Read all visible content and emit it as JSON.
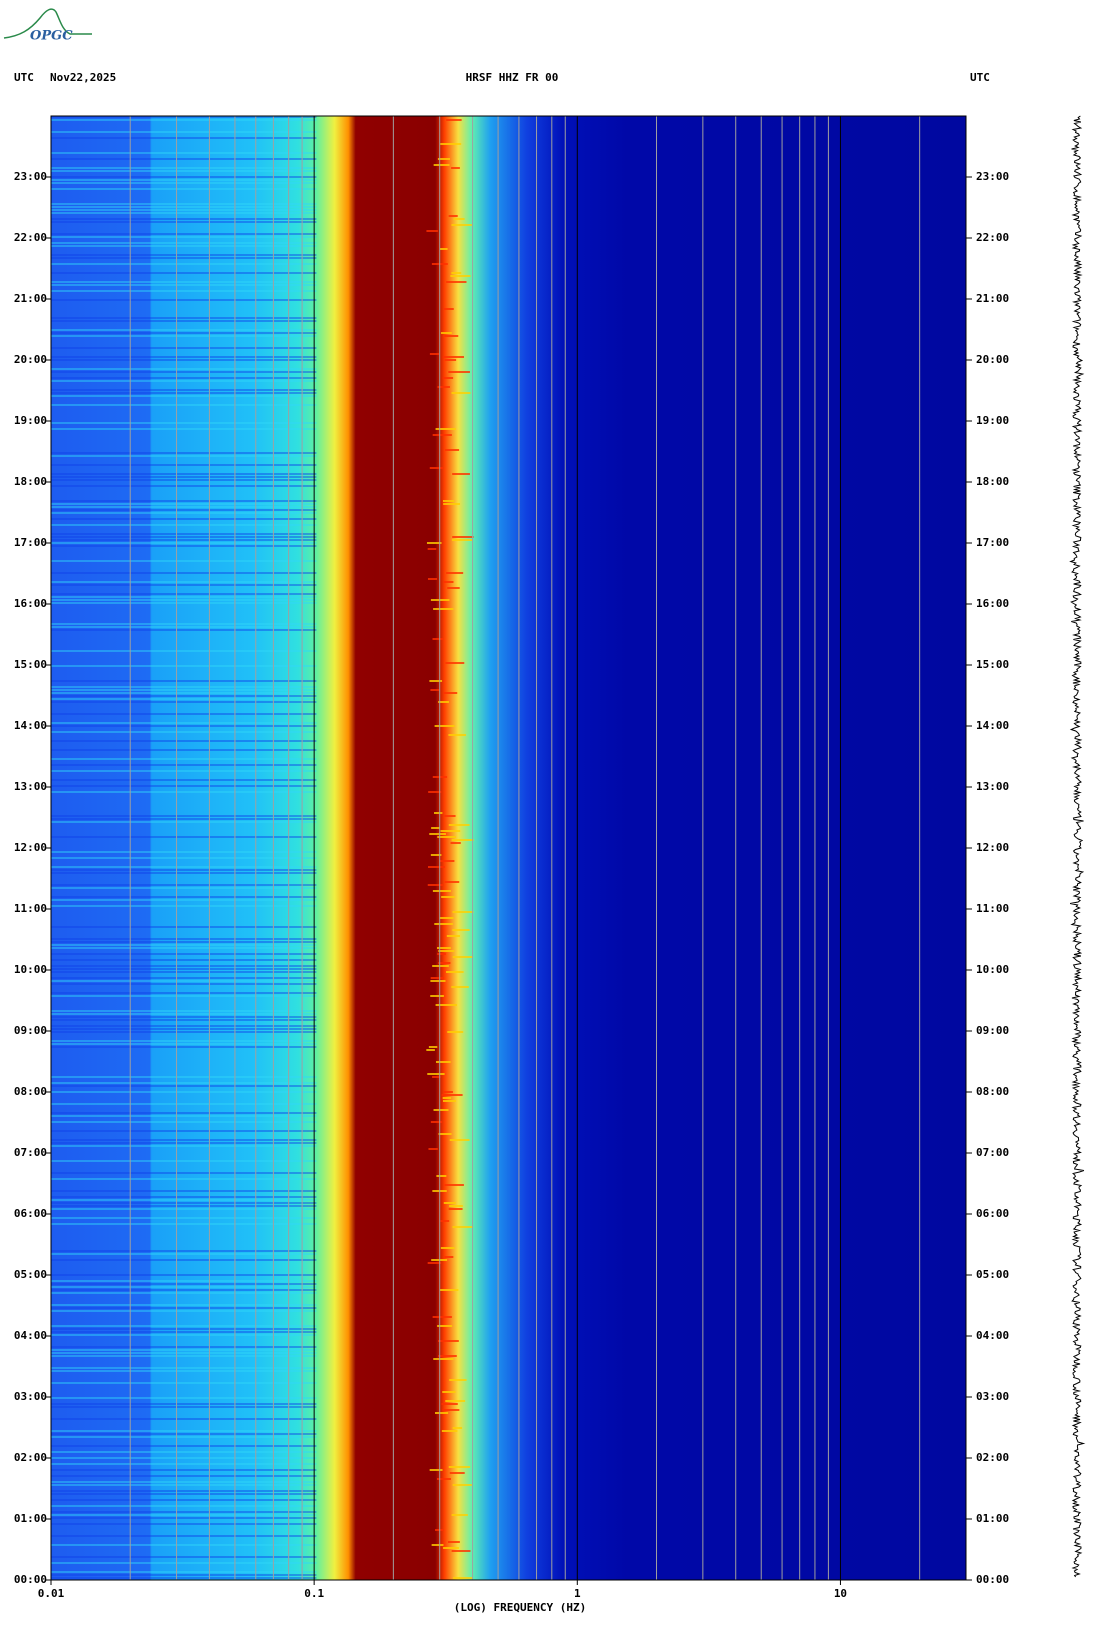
{
  "chart_data": {
    "type": "spectrogram",
    "logo": "OPGC",
    "time_zone_left": "UTC",
    "date": "Nov22,2025",
    "title": "HRSF HHZ FR 00",
    "time_zone_right": "UTC",
    "xlabel": "(LOG) FREQUENCY (HZ)",
    "xscale": "log",
    "xlim": [
      0.01,
      30
    ],
    "xticks": [
      0.01,
      0.1,
      1,
      10
    ],
    "xgrid": [
      0.02,
      0.03,
      0.04,
      0.05,
      0.06,
      0.07,
      0.08,
      0.09,
      0.2,
      0.3,
      0.4,
      0.5,
      0.6,
      0.7,
      0.8,
      0.9,
      2,
      3,
      4,
      5,
      6,
      7,
      8,
      9,
      20
    ],
    "ylim": [
      0,
      24
    ],
    "yticks": [
      {
        "value": 0,
        "label": "00:00"
      },
      {
        "value": 1,
        "label": "01:00"
      },
      {
        "value": 2,
        "label": "02:00"
      },
      {
        "value": 3,
        "label": "03:00"
      },
      {
        "value": 4,
        "label": "04:00"
      },
      {
        "value": 5,
        "label": "05:00"
      },
      {
        "value": 6,
        "label": "06:00"
      },
      {
        "value": 7,
        "label": "07:00"
      },
      {
        "value": 8,
        "label": "08:00"
      },
      {
        "value": 9,
        "label": "09:00"
      },
      {
        "value": 10,
        "label": "10:00"
      },
      {
        "value": 11,
        "label": "11:00"
      },
      {
        "value": 12,
        "label": "12:00"
      },
      {
        "value": 13,
        "label": "13:00"
      },
      {
        "value": 14,
        "label": "14:00"
      },
      {
        "value": 15,
        "label": "15:00"
      },
      {
        "value": 16,
        "label": "16:00"
      },
      {
        "value": 17,
        "label": "17:00"
      },
      {
        "value": 18,
        "label": "18:00"
      },
      {
        "value": 19,
        "label": "19:00"
      },
      {
        "value": 20,
        "label": "20:00"
      },
      {
        "value": 21,
        "label": "21:00"
      },
      {
        "value": 22,
        "label": "22:00"
      },
      {
        "value": 23,
        "label": "23:00"
      }
    ]
  }
}
